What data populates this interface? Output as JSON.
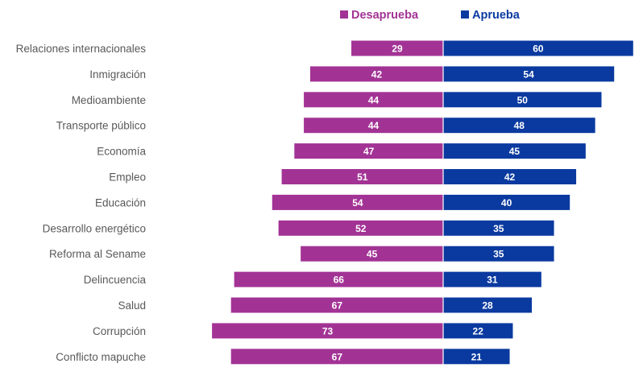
{
  "chart_data": {
    "type": "bar",
    "orientation": "horizontal-diverging",
    "title": "",
    "xlabel": "",
    "ylabel": "",
    "grid": false,
    "legend_position": "top",
    "categories": [
      "Relaciones internacionales",
      "Inmigración",
      "Medioambiente",
      "Transporte público",
      "Economía",
      "Empleo",
      "Educación",
      "Desarrollo energético",
      "Reforma al Sename",
      "Delincuencia",
      "Salud",
      "Corrupción",
      "Conflicto mapuche"
    ],
    "series": [
      {
        "name": "Desaprueba",
        "color": "#a23395",
        "direction": "left",
        "values": [
          29,
          42,
          44,
          44,
          47,
          51,
          54,
          52,
          45,
          66,
          67,
          73,
          67
        ]
      },
      {
        "name": "Aprueba",
        "color": "#0a3aa0",
        "direction": "right",
        "values": [
          60,
          54,
          50,
          48,
          45,
          42,
          40,
          35,
          35,
          31,
          28,
          22,
          21
        ]
      }
    ]
  }
}
